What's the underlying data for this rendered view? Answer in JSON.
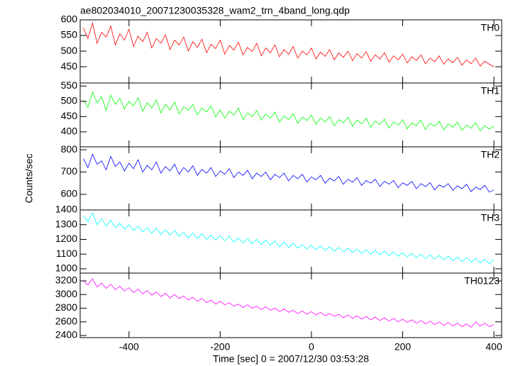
{
  "chart_data": [
    {
      "type": "line",
      "title": "ae802034010_20071230035328_wam2_trn_4band_long.qdp",
      "x": [
        -500,
        -490,
        -480,
        -470,
        -460,
        -450,
        -440,
        -430,
        -420,
        -410,
        -400,
        -390,
        -380,
        -370,
        -360,
        -350,
        -340,
        -330,
        -320,
        -310,
        -300,
        -290,
        -280,
        -270,
        -260,
        -250,
        -240,
        -230,
        -220,
        -210,
        -200,
        -190,
        -180,
        -170,
        -160,
        -150,
        -140,
        -130,
        -120,
        -110,
        -100,
        -90,
        -80,
        -70,
        -60,
        -50,
        -40,
        -30,
        -20,
        -10,
        0,
        10,
        20,
        30,
        40,
        50,
        60,
        70,
        80,
        90,
        100,
        110,
        120,
        130,
        140,
        150,
        160,
        170,
        180,
        190,
        200,
        210,
        220,
        230,
        240,
        250,
        260,
        270,
        280,
        290,
        300,
        310,
        320,
        330,
        340,
        350,
        360,
        370,
        380,
        390,
        400
      ],
      "xlim": [
        -507,
        417
      ],
      "ylim": [
        398,
        600
      ],
      "yticks": [
        450,
        500,
        550,
        600
      ],
      "series": [
        {
          "name": "TH0",
          "color": "#ff0000",
          "values": [
            575,
            540,
            590,
            525,
            560,
            545,
            580,
            520,
            555,
            535,
            570,
            515,
            548,
            530,
            560,
            510,
            540,
            525,
            552,
            505,
            535,
            520,
            545,
            500,
            530,
            512,
            538,
            495,
            522,
            508,
            535,
            490,
            518,
            503,
            528,
            488,
            512,
            498,
            525,
            485,
            510,
            495,
            520,
            482,
            505,
            490,
            515,
            478,
            500,
            488,
            510,
            475,
            497,
            483,
            505,
            472,
            495,
            480,
            500,
            470,
            492,
            478,
            498,
            468,
            488,
            475,
            495,
            465,
            485,
            472,
            490,
            462,
            482,
            470,
            488,
            460,
            478,
            466,
            485,
            458,
            475,
            463,
            480,
            455,
            472,
            460,
            478,
            452,
            468,
            458,
            450
          ]
        }
      ]
    },
    {
      "type": "line",
      "x": [
        -500,
        -490,
        -480,
        -470,
        -460,
        -450,
        -440,
        -430,
        -420,
        -410,
        -400,
        -390,
        -380,
        -370,
        -360,
        -350,
        -340,
        -330,
        -320,
        -310,
        -300,
        -290,
        -280,
        -270,
        -260,
        -250,
        -240,
        -230,
        -220,
        -210,
        -200,
        -190,
        -180,
        -170,
        -160,
        -150,
        -140,
        -130,
        -120,
        -110,
        -100,
        -90,
        -80,
        -70,
        -60,
        -50,
        -40,
        -30,
        -20,
        -10,
        0,
        10,
        20,
        30,
        40,
        50,
        60,
        70,
        80,
        90,
        100,
        110,
        120,
        130,
        140,
        150,
        160,
        170,
        180,
        190,
        200,
        210,
        220,
        230,
        240,
        250,
        260,
        270,
        280,
        290,
        300,
        310,
        320,
        330,
        340,
        350,
        360,
        370,
        380,
        390,
        400
      ],
      "xlim": [
        -507,
        417
      ],
      "ylim": [
        351,
        560
      ],
      "yticks": [
        400,
        450,
        500,
        550
      ],
      "series": [
        {
          "name": "TH1",
          "color": "#00ff00",
          "values": [
            505,
            480,
            530,
            495,
            515,
            470,
            520,
            490,
            510,
            475,
            500,
            485,
            512,
            468,
            495,
            478,
            505,
            462,
            490,
            472,
            498,
            458,
            482,
            470,
            490,
            455,
            478,
            465,
            485,
            450,
            472,
            445,
            468,
            455,
            478,
            440,
            462,
            450,
            470,
            438,
            458,
            445,
            465,
            432,
            452,
            440,
            460,
            428,
            448,
            437,
            455,
            425,
            445,
            432,
            450,
            420,
            440,
            430,
            448,
            418,
            438,
            426,
            445,
            415,
            435,
            424,
            442,
            412,
            432,
            422,
            440,
            410,
            430,
            420,
            438,
            408,
            428,
            418,
            435,
            406,
            426,
            415,
            432,
            405,
            422,
            412,
            430,
            403,
            420,
            410,
            418
          ]
        }
      ]
    },
    {
      "type": "line",
      "ylabel": "Counts/sec",
      "x": [
        -500,
        -490,
        -480,
        -470,
        -460,
        -450,
        -440,
        -430,
        -420,
        -410,
        -400,
        -390,
        -380,
        -370,
        -360,
        -350,
        -340,
        -330,
        -320,
        -310,
        -300,
        -290,
        -280,
        -270,
        -260,
        -250,
        -240,
        -230,
        -220,
        -210,
        -200,
        -190,
        -180,
        -170,
        -160,
        -150,
        -140,
        -130,
        -120,
        -110,
        -100,
        -90,
        -80,
        -70,
        -60,
        -50,
        -40,
        -30,
        -20,
        -10,
        0,
        10,
        20,
        30,
        40,
        50,
        60,
        70,
        80,
        90,
        100,
        110,
        120,
        130,
        140,
        150,
        160,
        170,
        180,
        190,
        200,
        210,
        220,
        230,
        240,
        250,
        260,
        270,
        280,
        290,
        300,
        310,
        320,
        330,
        340,
        350,
        360,
        370,
        380,
        390,
        400
      ],
      "xlim": [
        -507,
        417
      ],
      "ylim": [
        530,
        813
      ],
      "yticks": [
        600,
        700,
        800
      ],
      "series": [
        {
          "name": "TH2",
          "color": "#0000ff",
          "values": [
            760,
            720,
            780,
            735,
            750,
            710,
            770,
            725,
            745,
            705,
            740,
            715,
            755,
            700,
            730,
            710,
            745,
            695,
            725,
            705,
            735,
            690,
            720,
            700,
            728,
            685,
            712,
            695,
            720,
            680,
            705,
            690,
            715,
            675,
            700,
            685,
            708,
            670,
            695,
            680,
            700,
            665,
            690,
            675,
            695,
            660,
            685,
            670,
            690,
            655,
            678,
            665,
            685,
            650,
            672,
            660,
            680,
            645,
            668,
            655,
            675,
            640,
            662,
            650,
            668,
            635,
            658,
            645,
            662,
            630,
            652,
            640,
            658,
            625,
            648,
            635,
            652,
            620,
            642,
            632,
            648,
            618,
            638,
            625,
            645,
            612,
            632,
            622,
            640,
            610,
            620
          ]
        }
      ]
    },
    {
      "type": "line",
      "x": [
        -500,
        -490,
        -480,
        -470,
        -460,
        -450,
        -440,
        -430,
        -420,
        -410,
        -400,
        -390,
        -380,
        -370,
        -360,
        -350,
        -340,
        -330,
        -320,
        -310,
        -300,
        -290,
        -280,
        -270,
        -260,
        -250,
        -240,
        -230,
        -220,
        -210,
        -200,
        -190,
        -180,
        -170,
        -160,
        -150,
        -140,
        -130,
        -120,
        -110,
        -100,
        -90,
        -80,
        -70,
        -60,
        -50,
        -40,
        -30,
        -20,
        -10,
        0,
        10,
        20,
        30,
        40,
        50,
        60,
        70,
        80,
        90,
        100,
        110,
        120,
        130,
        140,
        150,
        160,
        170,
        180,
        190,
        200,
        210,
        220,
        230,
        240,
        250,
        260,
        270,
        280,
        290,
        300,
        310,
        320,
        330,
        340,
        350,
        360,
        370,
        380,
        390,
        400
      ],
      "xlim": [
        -507,
        417
      ],
      "ylim": [
        971,
        1400
      ],
      "yticks": [
        1000,
        1100,
        1200,
        1300,
        1400
      ],
      "series": [
        {
          "name": "TH3",
          "color": "#00ffff",
          "values": [
            1360,
            1320,
            1380,
            1300,
            1340,
            1290,
            1330,
            1280,
            1310,
            1270,
            1300,
            1260,
            1290,
            1250,
            1280,
            1240,
            1275,
            1235,
            1265,
            1230,
            1260,
            1220,
            1250,
            1210,
            1245,
            1205,
            1240,
            1200,
            1230,
            1195,
            1225,
            1190,
            1220,
            1180,
            1210,
            1175,
            1205,
            1170,
            1200,
            1165,
            1195,
            1160,
            1190,
            1150,
            1180,
            1145,
            1175,
            1140,
            1165,
            1135,
            1160,
            1130,
            1155,
            1125,
            1150,
            1120,
            1145,
            1115,
            1140,
            1110,
            1135,
            1105,
            1130,
            1100,
            1125,
            1095,
            1120,
            1090,
            1115,
            1085,
            1110,
            1080,
            1105,
            1075,
            1100,
            1070,
            1095,
            1065,
            1090,
            1060,
            1085,
            1055,
            1080,
            1050,
            1075,
            1045,
            1070,
            1040,
            1065,
            1035,
            1060
          ]
        }
      ]
    },
    {
      "type": "line",
      "xlabel": "Time [sec] 0 = 2007/12/30 03:53:28",
      "x": [
        -500,
        -490,
        -480,
        -470,
        -460,
        -450,
        -440,
        -430,
        -420,
        -410,
        -400,
        -390,
        -380,
        -370,
        -360,
        -350,
        -340,
        -330,
        -320,
        -310,
        -300,
        -290,
        -280,
        -270,
        -260,
        -250,
        -240,
        -230,
        -220,
        -210,
        -200,
        -190,
        -180,
        -170,
        -160,
        -150,
        -140,
        -130,
        -120,
        -110,
        -100,
        -90,
        -80,
        -70,
        -60,
        -50,
        -40,
        -30,
        -20,
        -10,
        0,
        10,
        20,
        30,
        40,
        50,
        60,
        70,
        80,
        90,
        100,
        110,
        120,
        130,
        140,
        150,
        160,
        170,
        180,
        190,
        200,
        210,
        220,
        230,
        240,
        250,
        260,
        270,
        280,
        290,
        300,
        310,
        320,
        330,
        340,
        350,
        360,
        370,
        380,
        390,
        400
      ],
      "xlim": [
        -507,
        417
      ],
      "xticks": [
        -400,
        -200,
        0,
        200,
        400
      ],
      "ylim": [
        2369,
        3314
      ],
      "yticks": [
        2400,
        2600,
        2800,
        3000,
        3200
      ],
      "series": [
        {
          "name": "TH0123",
          "color": "#ff00ff",
          "values": [
            3200,
            3140,
            3230,
            3110,
            3170,
            3090,
            3150,
            3070,
            3120,
            3050,
            3100,
            3030,
            3080,
            3010,
            3060,
            2990,
            3040,
            2970,
            3020,
            2950,
            3000,
            2940,
            2980,
            2920,
            2960,
            2900,
            2940,
            2880,
            2920,
            2860,
            2900,
            2850,
            2880,
            2830,
            2860,
            2810,
            2850,
            2800,
            2830,
            2780,
            2820,
            2770,
            2800,
            2750,
            2790,
            2740,
            2770,
            2720,
            2760,
            2710,
            2750,
            2700,
            2740,
            2690,
            2720,
            2680,
            2710,
            2660,
            2700,
            2650,
            2690,
            2640,
            2680,
            2630,
            2670,
            2620,
            2660,
            2610,
            2650,
            2600,
            2640,
            2590,
            2630,
            2580,
            2620,
            2570,
            2610,
            2560,
            2600,
            2550,
            2590,
            2540,
            2580,
            2530,
            2570,
            2520,
            2600,
            2540,
            2580,
            2530,
            2560
          ]
        }
      ]
    }
  ]
}
